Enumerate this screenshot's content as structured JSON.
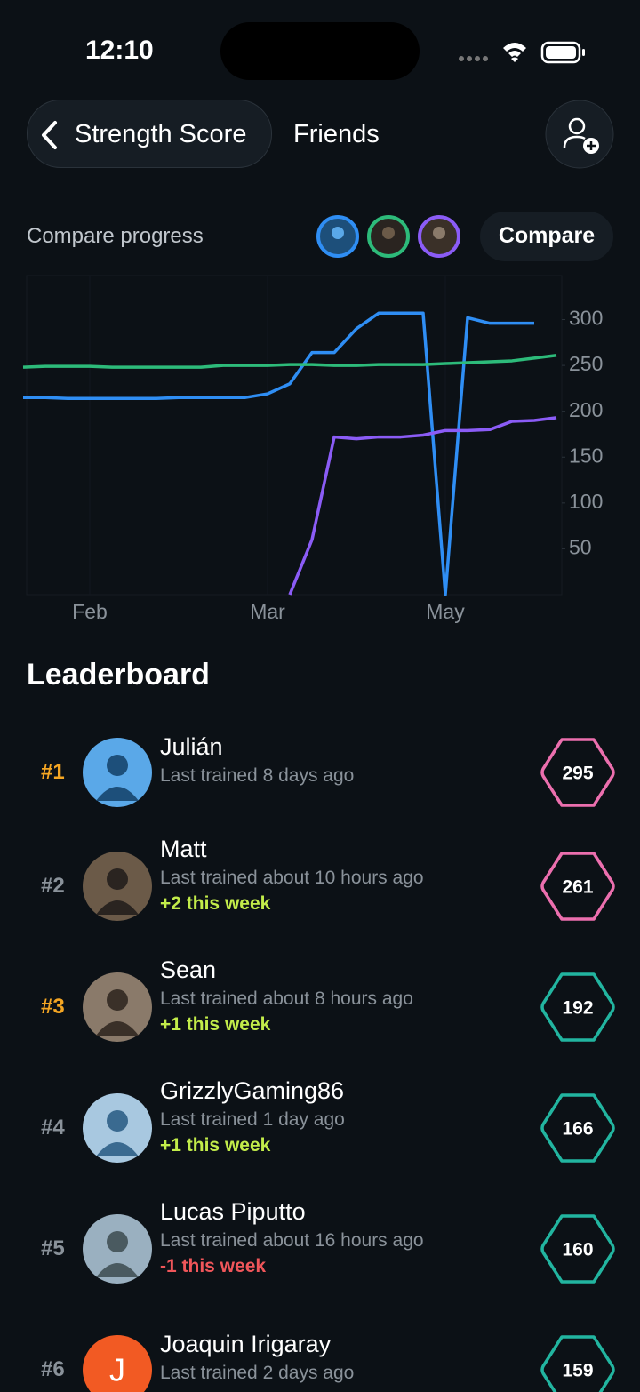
{
  "status_bar": {
    "time": "12:10"
  },
  "nav": {
    "back_label": "Strength Score",
    "tab": "Friends"
  },
  "compare": {
    "label": "Compare progress",
    "button": "Compare"
  },
  "chart_data": {
    "type": "line",
    "categories": [
      null,
      null,
      null,
      "Feb",
      null,
      null,
      null,
      null,
      null,
      null,
      null,
      "Mar",
      null,
      null,
      null,
      null,
      null,
      null,
      null,
      "May",
      null,
      null,
      null,
      null,
      null
    ],
    "series": [
      {
        "name": "Julián",
        "color": "#2f8ef4",
        "values": [
          215,
          215,
          214,
          214,
          214,
          214,
          214,
          215,
          215,
          215,
          215,
          219,
          230,
          264,
          264,
          290,
          307,
          307,
          307,
          0,
          302,
          296,
          296,
          296,
          null
        ]
      },
      {
        "name": "Matt",
        "color": "#2dbb7a",
        "values": [
          248,
          249,
          249,
          249,
          248,
          248,
          248,
          248,
          248,
          250,
          250,
          250,
          251,
          251,
          250,
          250,
          251,
          251,
          251,
          252,
          253,
          254,
          255,
          258,
          261
        ]
      },
      {
        "name": "Sean",
        "color": "#8b5cf6",
        "values": [
          null,
          null,
          null,
          null,
          null,
          null,
          null,
          null,
          null,
          null,
          null,
          null,
          0,
          60,
          172,
          170,
          172,
          172,
          174,
          179,
          179,
          180,
          189,
          190,
          193
        ]
      }
    ],
    "ylim": [
      0,
      348
    ],
    "yticks": [
      50,
      100,
      150,
      200,
      250,
      300
    ]
  },
  "leaderboard": {
    "title": "Leaderboard",
    "entries": [
      {
        "rank": "#1",
        "rank_color": "#f5a623",
        "name": "Julián",
        "last_trained": "Last trained 8 days ago",
        "score": 295,
        "badge_color": "#ec6fae"
      },
      {
        "rank": "#2",
        "rank_color": "#8a929a",
        "name": "Matt",
        "last_trained": "Last trained about 10 hours ago",
        "change": "+2 this week",
        "change_color": "#c2ec4a",
        "score": 261,
        "badge_color": "#ec6fae"
      },
      {
        "rank": "#3",
        "rank_color": "#f5a623",
        "name": "Sean",
        "last_trained": "Last trained about 8 hours ago",
        "change": "+1 this week",
        "change_color": "#c2ec4a",
        "score": 192,
        "badge_color": "#22b5a0"
      },
      {
        "rank": "#4",
        "rank_color": "#8a929a",
        "name": "GrizzlyGaming86",
        "last_trained": "Last trained 1 day ago",
        "change": "+1 this week",
        "change_color": "#c2ec4a",
        "score": 166,
        "badge_color": "#22b5a0"
      },
      {
        "rank": "#5",
        "rank_color": "#8a929a",
        "name": "Lucas Piputto",
        "last_trained": "Last trained about 16 hours ago",
        "change": "-1 this week",
        "change_color": "#f0565a",
        "score": 160,
        "badge_color": "#22b5a0"
      },
      {
        "rank": "#6",
        "rank_color": "#8a929a",
        "name": "Joaquin Irigaray",
        "avatar_letter": "J",
        "last_trained": "Last trained 2 days ago",
        "score": 159,
        "badge_color": "#22b5a0"
      }
    ]
  }
}
